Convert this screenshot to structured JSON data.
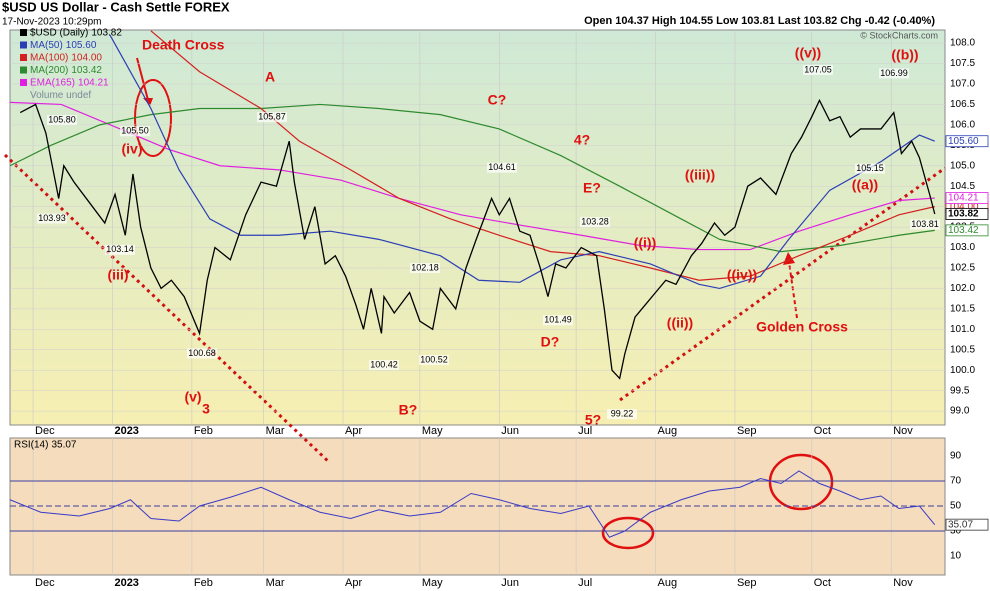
{
  "chart_data": [
    {
      "type": "line",
      "title": "$USD US Dollar - Cash Settle FOREX",
      "subtitle": "17-Nov-2023 10:29pm",
      "quote": "Open 104.37 High 104.55 Low 103.81 Last 103.82 Chg -0.42 (-0.40%)",
      "credit": "© StockCharts.com",
      "legend_note": "Volume undef",
      "xlim": [
        0,
        365
      ],
      "xticks": [
        {
          "value": 9,
          "label": "Dec"
        },
        {
          "value": 40,
          "label": "2023"
        },
        {
          "value": 71,
          "label": "Feb"
        },
        {
          "value": 99,
          "label": "Mar"
        },
        {
          "value": 130,
          "label": "Apr"
        },
        {
          "value": 160,
          "label": "May"
        },
        {
          "value": 191,
          "label": "Jun"
        },
        {
          "value": 221,
          "label": "Jul"
        },
        {
          "value": 252,
          "label": "Aug"
        },
        {
          "value": 283,
          "label": "Sep"
        },
        {
          "value": 313,
          "label": "Oct"
        },
        {
          "value": 344,
          "label": "Nov"
        }
      ],
      "ylim": [
        98.66,
        108.32
      ],
      "yticks": [
        {
          "value": 99,
          "label": "99.0"
        },
        {
          "value": 99.5,
          "label": "99.5"
        },
        {
          "value": 100,
          "label": "100.0"
        },
        {
          "value": 100.5,
          "label": "100.5"
        },
        {
          "value": 101,
          "label": "101.0"
        },
        {
          "value": 101.5,
          "label": "101.5"
        },
        {
          "value": 102,
          "label": "102.0"
        },
        {
          "value": 102.5,
          "label": "102.5"
        },
        {
          "value": 103,
          "label": "103.0"
        },
        {
          "value": 103.5,
          "label": "103.5"
        },
        {
          "value": 104,
          "label": "104.0"
        },
        {
          "value": 104.5,
          "label": "104.5"
        },
        {
          "value": 105,
          "label": "105.0"
        },
        {
          "value": 105.5,
          "label": "105.5"
        },
        {
          "value": 106,
          "label": "106.0"
        },
        {
          "value": 106.5,
          "label": "106.5"
        },
        {
          "value": 107,
          "label": "107.0"
        },
        {
          "value": 107.5,
          "label": "107.5"
        },
        {
          "value": 108,
          "label": "108.0"
        }
      ],
      "series": [
        {
          "name": "$USD (Daily)",
          "color": "#000000",
          "last": {
            "value": 103.82,
            "label": "103.82"
          },
          "x": [
            4,
            10,
            14,
            19,
            21,
            25,
            31,
            37,
            41,
            45,
            48,
            51,
            55,
            59,
            63,
            68,
            74,
            77,
            80,
            86,
            92,
            98,
            104,
            109,
            111,
            115,
            119,
            123,
            127,
            131,
            135,
            138,
            141,
            145,
            146,
            150,
            156,
            160,
            165,
            168,
            174,
            178,
            182,
            188,
            191,
            195,
            199,
            203,
            207,
            210,
            213,
            217,
            223,
            229,
            232,
            235,
            238,
            240,
            244,
            248,
            252,
            256,
            260,
            266,
            270,
            275,
            279,
            283,
            288,
            293,
            299,
            305,
            309,
            313,
            316,
            320,
            324,
            328,
            332,
            336,
            340,
            345,
            348,
            352,
            355,
            359,
            361
          ],
          "values": [
            106.3,
            106.5,
            105.8,
            104.2,
            105.0,
            104.6,
            104.1,
            103.6,
            104.3,
            103.3,
            104.8,
            103.5,
            102.5,
            102.0,
            102.2,
            101.8,
            100.9,
            102.2,
            103.0,
            102.7,
            103.8,
            104.6,
            104.5,
            105.6,
            104.6,
            103.2,
            104.0,
            102.6,
            102.8,
            102.3,
            101.6,
            101.0,
            102.0,
            100.9,
            101.8,
            101.4,
            101.9,
            101.2,
            101.0,
            102.0,
            101.5,
            102.5,
            103.2,
            104.2,
            103.8,
            104.2,
            103.4,
            103.3,
            102.5,
            101.8,
            102.6,
            102.5,
            103.0,
            102.8,
            101.5,
            100.0,
            99.8,
            100.4,
            101.3,
            101.6,
            101.9,
            102.2,
            102.1,
            102.8,
            103.1,
            103.6,
            103.3,
            103.5,
            104.5,
            104.7,
            104.3,
            105.3,
            105.7,
            106.2,
            106.6,
            106.1,
            106.2,
            105.7,
            105.9,
            105.9,
            105.9,
            106.3,
            105.3,
            105.6,
            105.2,
            104.3,
            103.82
          ]
        },
        {
          "name": "MA(50)",
          "color": "#2b3fb5",
          "last": {
            "value": 105.6,
            "label": "105.60"
          },
          "x": [
            39,
            55,
            66,
            78,
            90,
            105,
            125,
            144,
            168,
            183,
            199,
            215,
            230,
            250,
            269,
            277,
            293,
            304,
            320,
            340,
            355,
            361
          ],
          "values": [
            108.2,
            106.4,
            104.9,
            103.7,
            103.3,
            103.3,
            103.4,
            103.2,
            102.8,
            102.2,
            102.15,
            102.7,
            102.9,
            102.6,
            102.1,
            102.0,
            102.3,
            103.2,
            104.4,
            105.1,
            105.75,
            105.6
          ]
        },
        {
          "name": "MA(100)",
          "color": "#d42020",
          "last": {
            "value": 104.0,
            "label": "104.00"
          },
          "x": [
            55,
            74,
            98,
            113,
            133,
            152,
            172,
            191,
            211,
            230,
            250,
            269,
            289,
            308,
            328,
            347,
            361
          ],
          "values": [
            108.3,
            107.3,
            106.4,
            105.6,
            104.9,
            104.2,
            103.7,
            103.3,
            102.9,
            102.8,
            102.5,
            102.2,
            102.3,
            102.8,
            103.3,
            103.8,
            104.0
          ]
        },
        {
          "name": "MA(200)",
          "color": "#2e8a2e",
          "last": {
            "value": 103.42,
            "label": "103.42"
          },
          "x": [
            0,
            16,
            35,
            55,
            74,
            98,
            121,
            144,
            168,
            191,
            215,
            238,
            262,
            277,
            301,
            324,
            347,
            361
          ],
          "values": [
            105.0,
            105.5,
            106.0,
            106.25,
            106.4,
            106.4,
            106.5,
            106.4,
            106.25,
            105.9,
            105.25,
            104.5,
            103.7,
            103.2,
            102.9,
            103.05,
            103.3,
            103.42
          ]
        },
        {
          "name": "EMA(165)",
          "color": "#e020e0",
          "last": {
            "value": 104.21,
            "label": "104.21"
          },
          "x": [
            0,
            20,
            43,
            62,
            82,
            105,
            129,
            152,
            176,
            199,
            223,
            246,
            269,
            289,
            308,
            328,
            347,
            361
          ],
          "values": [
            106.55,
            106.5,
            105.9,
            105.4,
            105.0,
            104.9,
            104.65,
            104.2,
            103.8,
            103.55,
            103.3,
            103.05,
            102.95,
            102.95,
            103.4,
            103.8,
            104.15,
            104.21
          ]
        }
      ],
      "price_labels": [
        {
          "value": 105.8,
          "label": "105.80"
        },
        {
          "value": 103.93,
          "label": "103.93"
        },
        {
          "value": 103.14,
          "label": "103.14"
        },
        {
          "value": 105.5,
          "label": "105.50"
        },
        {
          "value": 100.68,
          "label": "100.68"
        },
        {
          "value": 105.87,
          "label": "105.87"
        },
        {
          "value": 100.42,
          "label": "100.42"
        },
        {
          "value": 100.52,
          "label": "100.52"
        },
        {
          "value": 102.18,
          "label": "102.18"
        },
        {
          "value": 104.61,
          "label": "104.61"
        },
        {
          "value": 103.28,
          "label": "103.28"
        },
        {
          "value": 101.49,
          "label": "101.49"
        },
        {
          "value": 99.22,
          "label": "99.22"
        },
        {
          "value": 107.05,
          "label": "107.05"
        },
        {
          "value": 106.99,
          "label": "106.99"
        },
        {
          "value": 105.15,
          "label": "105.15"
        },
        {
          "value": 103.81,
          "label": "103.81"
        }
      ],
      "annotations": [
        "Death Cross",
        "A",
        "C?",
        "4?",
        "E?",
        "(iv)",
        "(iii)",
        "(v)",
        "3",
        "B?",
        "D?",
        "5?",
        "((i))",
        "((ii))",
        "((iii))",
        "((iv))",
        "((v))",
        "((a))",
        "((b))",
        "Golden Cross"
      ]
    },
    {
      "type": "line",
      "series": [
        {
          "name": "RSI(14)",
          "color": "#3a3ac8",
          "last": {
            "value": 35.07,
            "label": "35.07"
          },
          "x": [
            0,
            12,
            27,
            39,
            47,
            55,
            66,
            74,
            86,
            98,
            109,
            121,
            133,
            144,
            156,
            168,
            180,
            191,
            203,
            215,
            226,
            234,
            240,
            250,
            262,
            273,
            285,
            293,
            301,
            308,
            316,
            324,
            332,
            340,
            347,
            355,
            361
          ],
          "values": [
            55,
            45,
            42,
            48,
            55,
            40,
            38,
            50,
            57,
            65,
            55,
            45,
            40,
            47,
            42,
            45,
            60,
            55,
            48,
            44,
            50,
            25,
            30,
            45,
            55,
            62,
            65,
            72,
            68,
            78,
            68,
            62,
            55,
            58,
            48,
            50,
            35.07
          ]
        }
      ],
      "ylim": [
        -5.2,
        104.4
      ],
      "yticks": [
        90,
        70,
        50,
        30,
        10
      ],
      "reference_lines": [
        70,
        50,
        30
      ]
    }
  ]
}
